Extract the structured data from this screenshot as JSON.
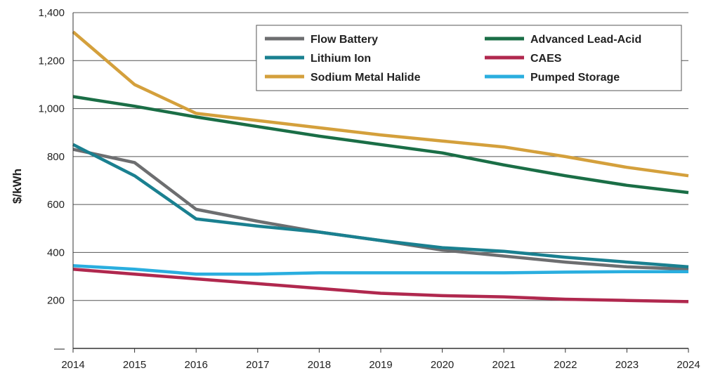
{
  "chart_data": {
    "type": "line",
    "title": "",
    "xlabel": "",
    "ylabel": "$/kWh",
    "x": [
      2014,
      2015,
      2016,
      2017,
      2018,
      2019,
      2020,
      2021,
      2022,
      2023,
      2024
    ],
    "x_tick_labels": [
      "2014",
      "2015",
      "2016",
      "2017",
      "2018",
      "2019",
      "2020",
      "2021",
      "2022",
      "2023",
      "2024"
    ],
    "ylim": [
      0,
      1400
    ],
    "y_ticks": [
      0,
      200,
      400,
      600,
      800,
      1000,
      1200,
      1400
    ],
    "y_tick_labels": [
      "—",
      "200",
      "400",
      "600",
      "800",
      "1,000",
      "1,200",
      "1,400"
    ],
    "grid": "horizontal",
    "legend_position": "top-right",
    "legend_columns": 2,
    "series": [
      {
        "name": "Flow Battery",
        "color": "#6d6e70",
        "values": [
          830,
          775,
          580,
          530,
          485,
          450,
          410,
          385,
          360,
          340,
          330
        ]
      },
      {
        "name": "Advanced Lead-Acid",
        "color": "#1a6e46",
        "values": [
          1050,
          1010,
          965,
          925,
          885,
          850,
          815,
          765,
          720,
          680,
          650
        ]
      },
      {
        "name": "Lithium Ion",
        "color": "#1a8090",
        "values": [
          850,
          720,
          540,
          510,
          485,
          450,
          420,
          405,
          380,
          360,
          340
        ]
      },
      {
        "name": "CAES",
        "color": "#b0284e",
        "values": [
          330,
          310,
          290,
          270,
          250,
          230,
          220,
          215,
          205,
          200,
          195
        ]
      },
      {
        "name": "Sodium Metal Halide",
        "color": "#d4a03c",
        "values": [
          1320,
          1100,
          980,
          950,
          920,
          890,
          865,
          840,
          800,
          755,
          720
        ]
      },
      {
        "name": "Pumped Storage",
        "color": "#2aaedf",
        "values": [
          345,
          330,
          310,
          310,
          315,
          315,
          315,
          315,
          318,
          320,
          320
        ]
      }
    ]
  }
}
